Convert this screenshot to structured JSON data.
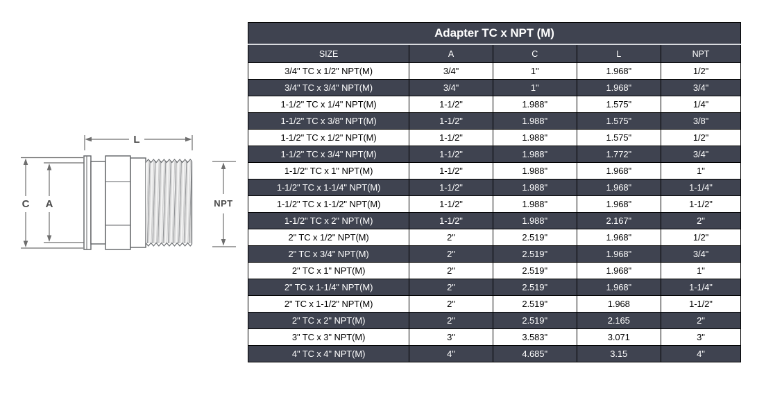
{
  "title": "Adapter TC x NPT (M)",
  "table": {
    "columns": [
      "SIZE",
      "A",
      "C",
      "L",
      "NPT"
    ],
    "rows": [
      [
        "3/4\" TC x 1/2\" NPT(M)",
        "3/4\"",
        "1\"",
        "1.968\"",
        "1/2\""
      ],
      [
        "3/4\" TC x 3/4\" NPT(M)",
        "3/4\"",
        "1\"",
        "1.968\"",
        "3/4\""
      ],
      [
        "1-1/2\" TC x 1/4\" NPT(M)",
        "1-1/2\"",
        "1.988\"",
        "1.575\"",
        "1/4\""
      ],
      [
        "1-1/2\" TC x 3/8\" NPT(M)",
        "1-1/2\"",
        "1.988\"",
        "1.575\"",
        "3/8\""
      ],
      [
        "1-1/2\" TC x 1/2\" NPT(M)",
        "1-1/2\"",
        "1.988\"",
        "1.575\"",
        "1/2\""
      ],
      [
        "1-1/2\" TC x 3/4\" NPT(M)",
        "1-1/2\"",
        "1.988\"",
        "1.772\"",
        "3/4\""
      ],
      [
        "1-1/2\" TC x 1\" NPT(M)",
        "1-1/2\"",
        "1.988\"",
        "1.968\"",
        "1\""
      ],
      [
        "1-1/2\" TC x 1-1/4\" NPT(M)",
        "1-1/2\"",
        "1.988\"",
        "1.968\"",
        "1-1/4\""
      ],
      [
        "1-1/2\" TC x 1-1/2\" NPT(M)",
        "1-1/2\"",
        "1.988\"",
        "1.968\"",
        "1-1/2\""
      ],
      [
        "1-1/2\" TC x 2\" NPT(M)",
        "1-1/2\"",
        "1.988\"",
        "2.167\"",
        "2\""
      ],
      [
        "2\" TC x 1/2\" NPT(M)",
        "2\"",
        "2.519\"",
        "1.968\"",
        "1/2\""
      ],
      [
        "2\" TC x 3/4\" NPT(M)",
        "2\"",
        "2.519\"",
        "1.968\"",
        "3/4\""
      ],
      [
        "2\" TC x 1\" NPT(M)",
        "2\"",
        "2.519\"",
        "1.968\"",
        "1\""
      ],
      [
        "2\" TC x 1-1/4\" NPT(M)",
        "2\"",
        "2.519\"",
        "1.968\"",
        "1-1/4\""
      ],
      [
        "2\" TC x 1-1/2\" NPT(M)",
        "2\"",
        "2.519\"",
        "1.968",
        "1-1/2\""
      ],
      [
        "2\" TC x 2\" NPT(M)",
        "2\"",
        "2.519\"",
        "2.165",
        "2\""
      ],
      [
        "3\" TC x 3\" NPT(M)",
        "3\"",
        "3.583\"",
        "3.071",
        "3\""
      ],
      [
        "4\" TC x 4\" NPT(M)",
        "4\"",
        "4.685\"",
        "3.15",
        "4\""
      ]
    ]
  },
  "diagram": {
    "labels": {
      "length": "L",
      "clamp_od": "C",
      "clamp_id": "A",
      "thread": "NPT"
    }
  },
  "colors": {
    "row_dark": "#3f4350",
    "row_light": "#ffffff",
    "border": "#000000",
    "title_divider": "#d9dbdf",
    "drawing_line": "#64676c"
  }
}
